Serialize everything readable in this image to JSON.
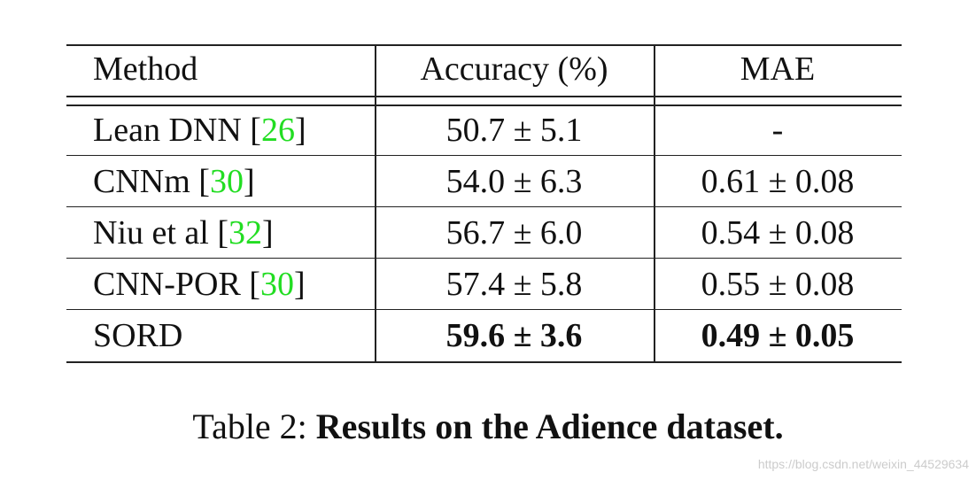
{
  "table": {
    "header": [
      "Method",
      "Accuracy (%)",
      "MAE"
    ],
    "rows": [
      [
        "Lean DNN [26]",
        "50.7 ± 5.1",
        "-"
      ],
      [
        "CNNm [30]",
        "54.0 ± 6.3",
        "0.61 ± 0.08"
      ],
      [
        "Niu et al [32]",
        "56.7 ± 6.0",
        "0.54 ± 0.08"
      ],
      [
        "CNN-POR [30]",
        "57.4 ± 5.8",
        "0.55 ± 0.08"
      ],
      [
        "SORD",
        "59.6 ± 3.6",
        "0.49 ± 0.05"
      ]
    ]
  },
  "caption": {
    "label": "Table 2:",
    "text": "Results on the Adience dataset."
  },
  "watermark": "https://blog.csdn.net/weixin_44529634"
}
